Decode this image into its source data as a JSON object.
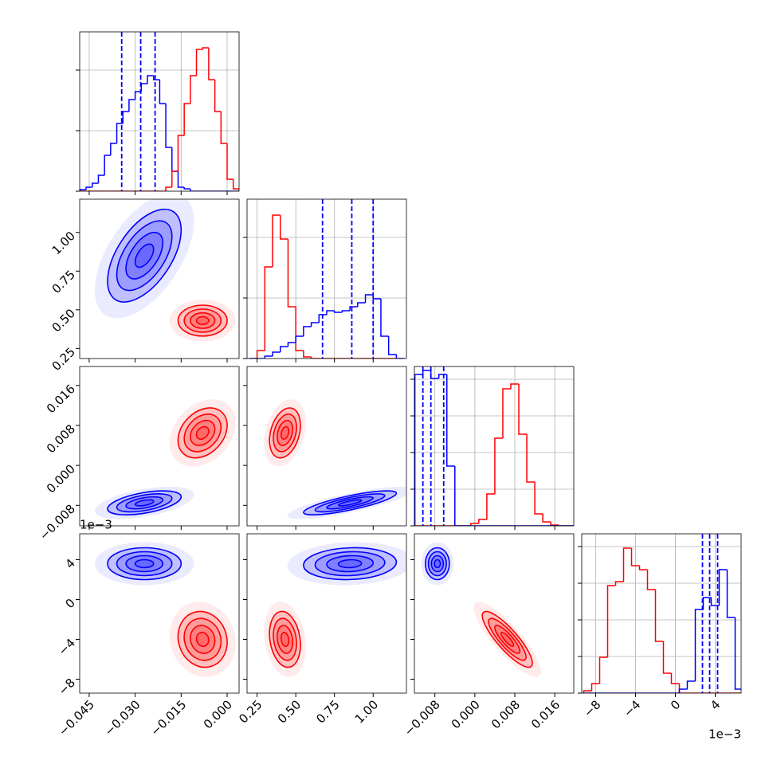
{
  "chart_data": {
    "type": "corner",
    "levels": [
      0.5,
      1,
      1.5,
      2
    ],
    "parameters": [
      {
        "lim": [
          -0.0481,
          0.0039
        ],
        "ticks": [
          {
            "value": -0.045,
            "label": "−0.045"
          },
          {
            "value": -0.03,
            "label": "−0.030"
          },
          {
            "value": -0.015,
            "label": "−0.015"
          },
          {
            "value": 0,
            "label": "0.000"
          }
        ]
      },
      {
        "lim": [
          0.185,
          1.215
        ],
        "ticks": [
          0.25,
          {
            "value": 0.5,
            "label": "0.50"
          },
          0.75,
          {
            "value": 1,
            "label": "1.00"
          }
        ]
      },
      {
        "lim": [
          -0.0121,
          0.0198
        ],
        "ticks": [
          {
            "value": -0.008,
            "label": "−0.008"
          },
          {
            "value": 0,
            "label": "0.000"
          },
          0.008,
          0.016
        ]
      },
      {
        "lim": [
          -9.4,
          6.6
        ],
        "ticks": [
          {
            "value": -8,
            "label": "−8"
          },
          {
            "value": -4,
            "label": "−4"
          },
          0,
          4
        ],
        "offset_label": "1e−3"
      }
    ],
    "diagonal": [
      {
        "bins": [
          -0.048,
          -0.046,
          -0.044,
          -0.042,
          -0.04,
          -0.038,
          -0.036,
          -0.034,
          -0.032,
          -0.03,
          -0.028,
          -0.026,
          -0.024,
          -0.022,
          -0.02,
          -0.018,
          -0.016,
          -0.014,
          -0.012,
          -0.01,
          -0.008,
          -0.006,
          -0.004,
          -0.002,
          0.0,
          0.002,
          0.004
        ],
        "ylim": [
          0,
          200
        ],
        "yticks": [
          0,
          76,
          152
        ],
        "series": [
          {
            "color": "#0000ff",
            "values": [
              2,
              5,
              10,
              20,
              45,
              60,
              85,
              100,
              115,
              125,
              135,
              145,
              140,
              110,
              55,
              25,
              5,
              3,
              0,
              0,
              0,
              0,
              0,
              0,
              0,
              0
            ]
          },
          {
            "color": "#ff0000",
            "values": [
              0,
              0,
              0,
              0,
              0,
              0,
              0,
              0,
              0,
              0,
              0,
              0,
              0,
              0,
              5,
              25,
              70,
              110,
              145,
              178,
              180,
              140,
              100,
              60,
              15,
              3
            ]
          }
        ],
        "quantiles": {
          "color": "#0000ff",
          "values": [
            -0.0344,
            -0.0282,
            -0.0235
          ]
        }
      },
      {
        "bins": [
          0.2,
          0.25,
          0.3,
          0.35,
          0.4,
          0.45,
          0.5,
          0.55,
          0.6,
          0.65,
          0.7,
          0.75,
          0.8,
          0.85,
          0.9,
          0.95,
          1.0,
          1.05,
          1.1,
          1.15,
          1.2
        ],
        "ylim": [
          0,
          200
        ],
        "yticks": [
          0,
          76,
          152
        ],
        "series": [
          {
            "color": "#ff0000",
            "values": [
              0,
              10,
              115,
              180,
              150,
              65,
              10,
              2,
              0,
              0,
              0,
              0,
              0,
              0,
              0,
              0,
              0,
              0,
              0,
              0
            ]
          },
          {
            "color": "#0000ff",
            "values": [
              0,
              0,
              3,
              8,
              15,
              20,
              28,
              40,
              45,
              55,
              60,
              58,
              60,
              65,
              70,
              80,
              75,
              28,
              5,
              0
            ]
          }
        ],
        "quantiles": {
          "color": "#0000ff",
          "values": [
            0.673,
            0.862,
            1.0
          ]
        }
      },
      {
        "bins": [
          -0.012,
          -0.0104,
          -0.0088,
          -0.0072,
          -0.0056,
          -0.004,
          -0.0024,
          -0.0008,
          0.0008,
          0.0024,
          0.004,
          0.0056,
          0.0072,
          0.0088,
          0.0104,
          0.012,
          0.0136,
          0.0152,
          0.0168,
          0.0184,
          0.02
        ],
        "ylim": [
          0,
          200
        ],
        "yticks": [
          0,
          46,
          92,
          138,
          184
        ],
        "series": [
          {
            "color": "#ff0000",
            "values": [
              0,
              0,
              0,
              0,
              0,
              0,
              0,
              3,
              8,
              40,
              110,
              172,
              178,
              115,
              55,
              15,
              5,
              1,
              0,
              0
            ]
          },
          {
            "color": "#0000ff",
            "values": [
              190,
              195,
              185,
              190,
              75,
              0,
              0,
              0,
              0,
              0,
              0,
              0,
              0,
              0,
              0,
              0,
              0,
              0,
              0,
              0
            ]
          }
        ],
        "quantiles": {
          "color": "#0000ff",
          "values": [
            -0.0104,
            -0.0088,
            -0.00624
          ]
        }
      },
      {
        "bins": [
          -9.2,
          -8.4,
          -7.6,
          -6.8,
          -6.0,
          -5.2,
          -4.4,
          -3.6,
          -2.8,
          -2.0,
          -1.2,
          -0.4,
          0.4,
          1.2,
          2.0,
          2.8,
          3.6,
          4.4,
          5.2,
          6.0,
          6.8
        ],
        "ylim": [
          0,
          200
        ],
        "yticks": [
          0,
          46,
          92,
          138,
          184
        ],
        "series": [
          {
            "color": "#ff0000",
            "values": [
              3,
              12,
              45,
              135,
              140,
              182,
              160,
              155,
              130,
              65,
              25,
              12,
              0,
              0,
              0,
              0,
              0,
              0,
              0,
              0
            ]
          },
          {
            "color": "#0000ff",
            "values": [
              0,
              0,
              0,
              0,
              0,
              0,
              0,
              0,
              0,
              0,
              0,
              0,
              5,
              15,
              105,
              120,
              110,
              155,
              95,
              5
            ]
          }
        ],
        "quantiles": {
          "color": "#0000ff",
          "values": [
            2.72,
            3.44,
            4.24
          ]
        }
      }
    ],
    "pairs": [
      {
        "x": 0,
        "y": 1,
        "clusters": [
          {
            "color": "#0000ff",
            "cx": -0.027,
            "cy": 0.85,
            "sx": 0.006,
            "sy": 0.15,
            "rho": 0.55
          },
          {
            "color": "#ff0000",
            "cx": -0.008,
            "cy": 0.43,
            "sx": 0.004,
            "sy": 0.05,
            "rho": 0
          }
        ]
      },
      {
        "x": 0,
        "y": 2,
        "clusters": [
          {
            "color": "#ff0000",
            "cx": -0.008,
            "cy": 0.0065,
            "sx": 0.004,
            "sy": 0.0025,
            "rho": 0.3
          },
          {
            "color": "#0000ff",
            "cx": -0.027,
            "cy": -0.0075,
            "sx": 0.006,
            "sy": 0.0012,
            "rho": 0.5
          }
        ]
      },
      {
        "x": 1,
        "y": 2,
        "clusters": [
          {
            "color": "#ff0000",
            "cx": 0.43,
            "cy": 0.0065,
            "sx": 0.05,
            "sy": 0.0025,
            "rho": 0.3
          },
          {
            "color": "#0000ff",
            "cx": 0.85,
            "cy": -0.0075,
            "sx": 0.15,
            "sy": 0.0012,
            "rho": 0.8
          }
        ]
      },
      {
        "x": 0,
        "y": 3,
        "clusters": [
          {
            "color": "#0000ff",
            "cx": -0.027,
            "cy": 3.6,
            "sx": 0.006,
            "sy": 0.8,
            "rho": 0
          },
          {
            "color": "#ff0000",
            "cx": -0.008,
            "cy": -4.0,
            "sx": 0.004,
            "sy": 1.4,
            "rho": -0.1
          }
        ]
      },
      {
        "x": 1,
        "y": 3,
        "clusters": [
          {
            "color": "#0000ff",
            "cx": 0.85,
            "cy": 3.6,
            "sx": 0.15,
            "sy": 0.8,
            "rho": 0.1
          },
          {
            "color": "#ff0000",
            "cx": 0.43,
            "cy": -4.0,
            "sx": 0.05,
            "sy": 1.4,
            "rho": -0.2
          }
        ]
      },
      {
        "x": 2,
        "y": 3,
        "clusters": [
          {
            "color": "#0000ff",
            "cx": -0.0075,
            "cy": 3.6,
            "sx": 0.0012,
            "sy": 0.8,
            "rho": 0
          },
          {
            "color": "#ff0000",
            "cx": 0.0065,
            "cy": -4.0,
            "sx": 0.0025,
            "sy": 1.4,
            "rho": -0.85
          }
        ]
      }
    ]
  }
}
